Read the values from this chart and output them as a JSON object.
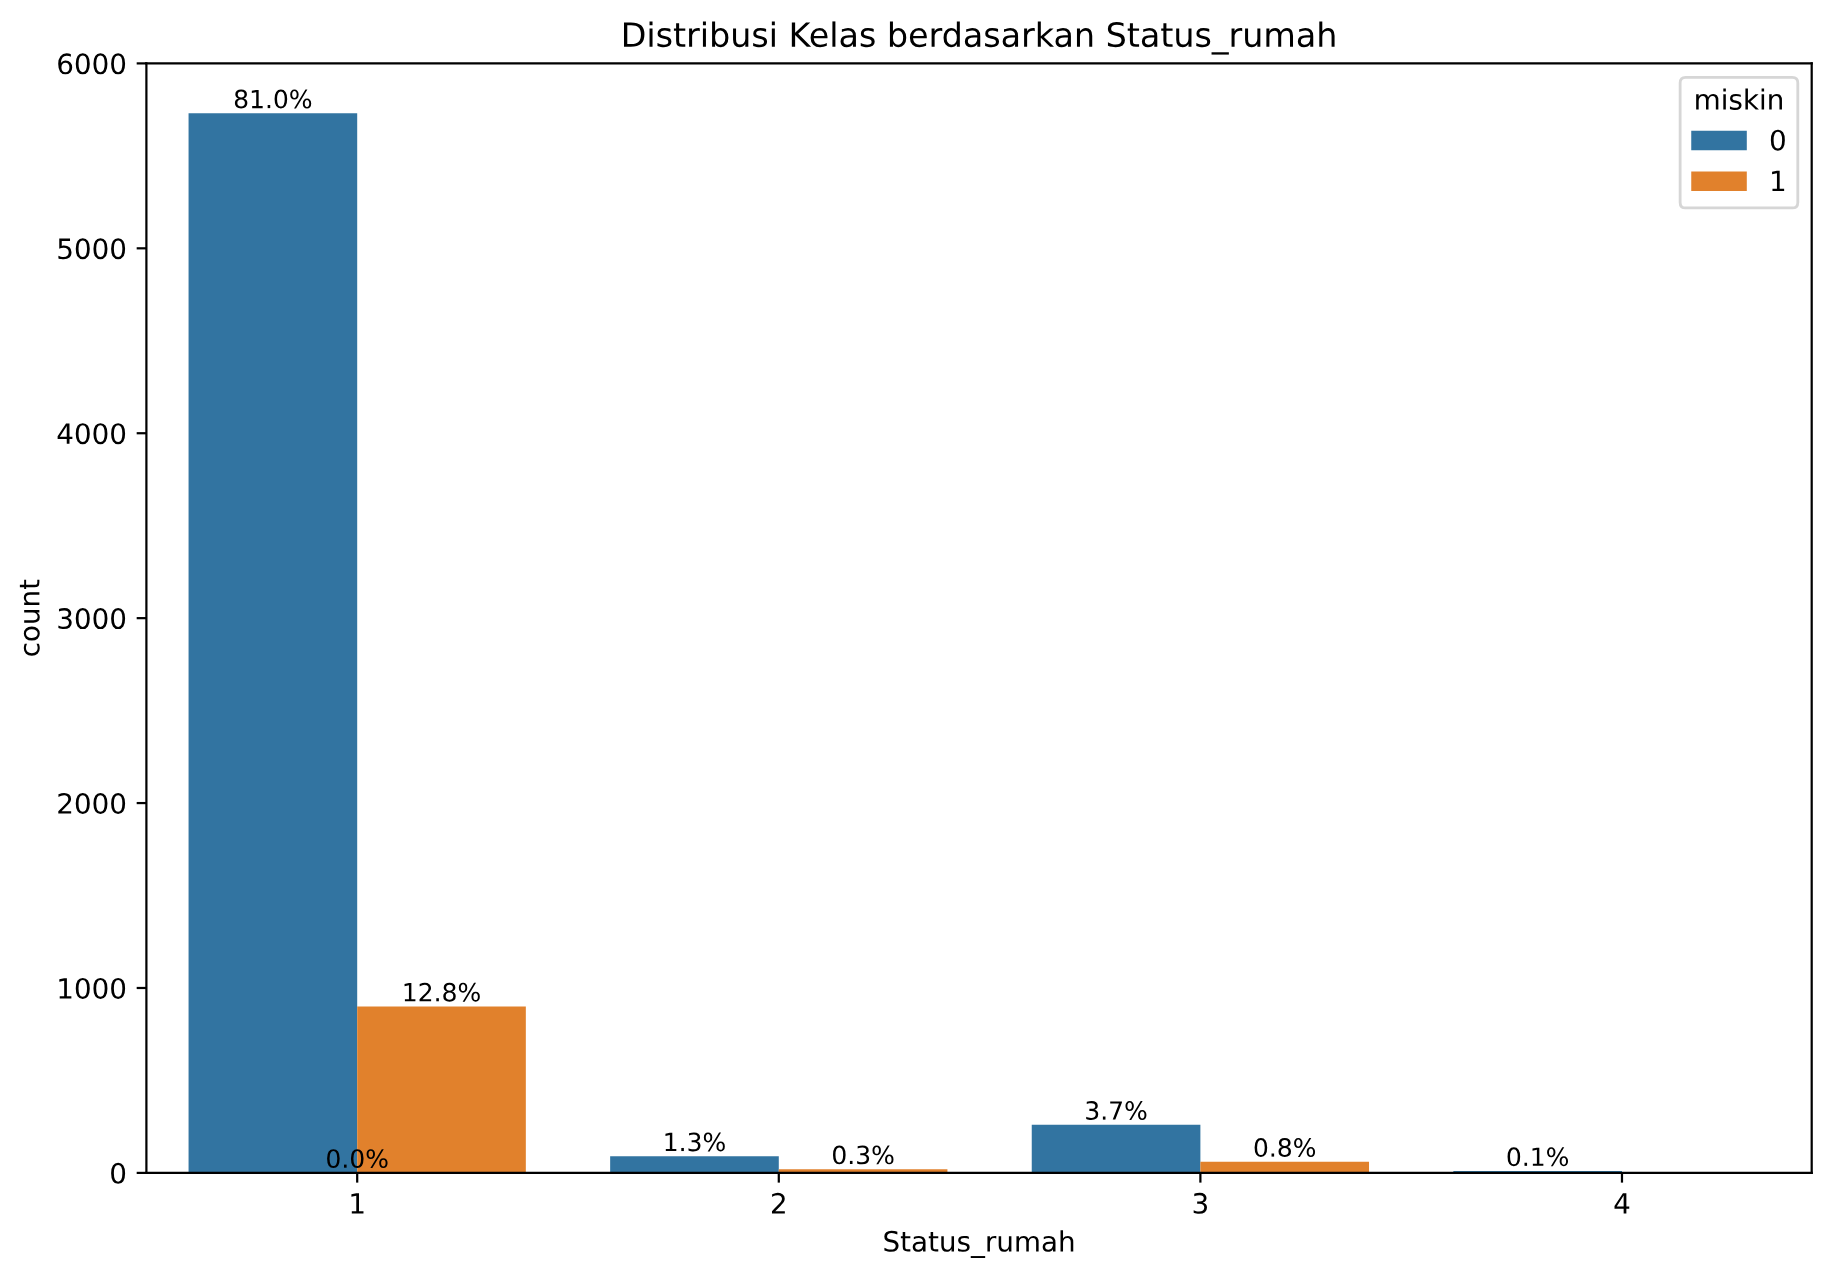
{
  "chart_data": {
    "type": "bar",
    "title": "Distribusi Kelas berdasarkan Status_rumah",
    "xlabel": "Status_rumah",
    "ylabel": "count",
    "legend_title": "miskin",
    "categories": [
      "1",
      "2",
      "3",
      "4"
    ],
    "series": [
      {
        "name": "0",
        "color": "#3274a1",
        "values": [
          5730,
          90,
          260,
          10
        ]
      },
      {
        "name": "1",
        "color": "#e1812c",
        "values": [
          900,
          20,
          60,
          0
        ]
      }
    ],
    "annotations": [
      {
        "text": "81.0%",
        "x": "1",
        "y": 5730
      },
      {
        "text": "1.3%",
        "x": "2",
        "y": 90
      },
      {
        "text": "3.7%",
        "x": "3",
        "y": 260
      },
      {
        "text": "0.1%",
        "x": "4",
        "y": 10
      },
      {
        "text": "12.8%",
        "x": "1",
        "y": 900
      },
      {
        "text": "0.3%",
        "x": "2",
        "y": 20
      },
      {
        "text": "0.8%",
        "x": "3",
        "y": 60
      },
      {
        "text": "0.0%",
        "x": "1",
        "y": 0
      }
    ],
    "ylim": [
      0,
      6000
    ],
    "yticks": [
      0,
      1000,
      2000,
      3000,
      4000,
      5000,
      6000
    ],
    "grid": false,
    "legend": "top right"
  }
}
